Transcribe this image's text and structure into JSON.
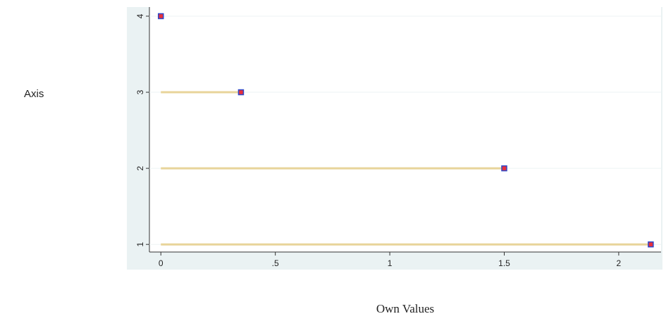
{
  "chart_data": {
    "type": "scatter",
    "y_label": "Axis",
    "x_label": "Own Values",
    "x": [
      0,
      0.35,
      1.5,
      2.14
    ],
    "y": [
      4,
      3,
      2,
      1
    ],
    "marker_color": "#e8303a",
    "marker_edge": "#3048c8",
    "spike_color": "#e8d49a",
    "xlim": [
      -0.05,
      2.185
    ],
    "ylim": [
      0.9,
      4.12
    ],
    "xticks": [
      0,
      {
        "value": 0.5,
        "label": ".5"
      },
      1,
      1.5,
      2
    ],
    "yticks": [
      1,
      2,
      3,
      4
    ],
    "grid": true
  }
}
